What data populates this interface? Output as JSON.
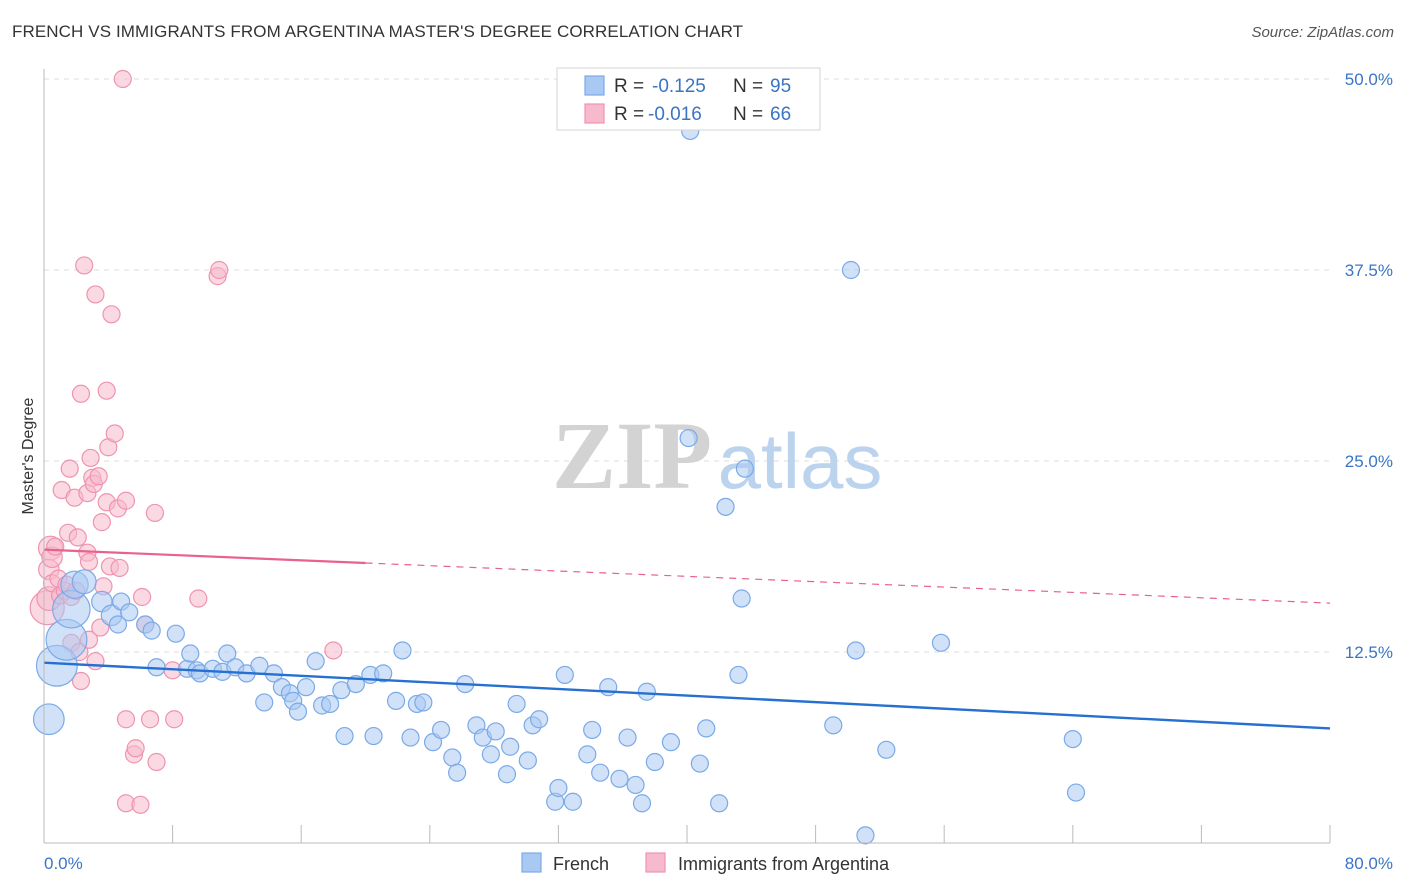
{
  "header": {
    "title": "FRENCH VS IMMIGRANTS FROM ARGENTINA MASTER'S DEGREE CORRELATION CHART",
    "source": "Source: ZipAtlas.com"
  },
  "watermark": {
    "zip": "ZIP",
    "atlas": "atlas"
  },
  "colors": {
    "french_fill": "#a9c8f2",
    "french_stroke": "#7aaae8",
    "french_line": "#2570d0",
    "arg_fill": "#f7b9cc",
    "arg_stroke": "#ef93b0",
    "arg_line": "#e8628e",
    "axis_text": "#3a75c4",
    "grid": "#dddddd"
  },
  "legend": {
    "rows": [
      {
        "r_label": "R =",
        "r_value": "-0.125",
        "n_label": "N =",
        "n_value": "95"
      },
      {
        "r_label": "R =",
        "r_value": "-0.016",
        "n_label": "N =",
        "n_value": "66"
      }
    ]
  },
  "chart_data": {
    "type": "scatter",
    "title": "FRENCH VS IMMIGRANTS FROM ARGENTINA MASTER'S DEGREE CORRELATION CHART",
    "xlabel": "",
    "ylabel": "Master's Degree",
    "xlim": [
      0,
      80
    ],
    "ylim": [
      0,
      50
    ],
    "x_tick_labels": [
      "0.0%",
      "80.0%"
    ],
    "y_ticks": [
      12.5,
      25,
      37.5,
      50
    ],
    "y_tick_labels": [
      "12.5%",
      "25.0%",
      "37.5%",
      "50.0%"
    ],
    "grid": true,
    "legend_position": "bottom-center",
    "series": [
      {
        "name": "French",
        "trend": {
          "x": [
            0,
            80
          ],
          "y": [
            11.8,
            7.5
          ],
          "dashed_from_x": null
        },
        "points": [
          [
            0.3,
            8.1,
            1.8
          ],
          [
            0.8,
            11.6,
            2.4
          ],
          [
            1.4,
            13.3,
            2.4
          ],
          [
            1.7,
            15.3,
            2.2
          ],
          [
            1.9,
            16.9,
            1.6
          ],
          [
            2.5,
            17.1,
            1.4
          ],
          [
            3.6,
            15.8,
            1.2
          ],
          [
            4.2,
            14.9,
            1.2
          ],
          [
            4.6,
            14.3,
            1
          ],
          [
            4.8,
            15.8,
            1
          ],
          [
            5.3,
            15.1,
            1
          ],
          [
            6.3,
            14.3,
            1
          ],
          [
            6.7,
            13.9,
            1
          ],
          [
            7.0,
            11.5,
            1
          ],
          [
            8.2,
            13.7,
            1
          ],
          [
            8.9,
            11.4,
            1
          ],
          [
            9.1,
            12.4,
            1
          ],
          [
            9.5,
            11.3,
            1
          ],
          [
            9.7,
            11.1,
            1
          ],
          [
            10.5,
            11.4,
            1
          ],
          [
            11.1,
            11.2,
            1
          ],
          [
            11.4,
            12.4,
            1
          ],
          [
            11.9,
            11.5,
            1
          ],
          [
            12.6,
            11.1,
            1
          ],
          [
            13.4,
            11.6,
            1
          ],
          [
            13.7,
            9.2,
            1
          ],
          [
            14.3,
            11.1,
            1
          ],
          [
            14.8,
            10.2,
            1
          ],
          [
            15.3,
            9.8,
            1
          ],
          [
            15.5,
            9.3,
            1
          ],
          [
            15.8,
            8.6,
            1
          ],
          [
            16.3,
            10.2,
            1
          ],
          [
            16.9,
            11.9,
            1
          ],
          [
            17.3,
            9.0,
            1
          ],
          [
            17.8,
            9.1,
            1
          ],
          [
            18.5,
            10.0,
            1
          ],
          [
            18.7,
            7.0,
            1
          ],
          [
            19.4,
            10.4,
            1
          ],
          [
            20.3,
            11.0,
            1
          ],
          [
            20.5,
            7.0,
            1
          ],
          [
            21.1,
            11.1,
            1
          ],
          [
            21.9,
            9.3,
            1
          ],
          [
            22.3,
            12.6,
            1
          ],
          [
            22.8,
            6.9,
            1
          ],
          [
            23.2,
            9.1,
            1
          ],
          [
            23.6,
            9.2,
            1
          ],
          [
            24.2,
            6.6,
            1
          ],
          [
            24.7,
            7.4,
            1
          ],
          [
            25.4,
            5.6,
            1
          ],
          [
            25.7,
            4.6,
            1
          ],
          [
            26.2,
            10.4,
            1
          ],
          [
            26.9,
            7.7,
            1
          ],
          [
            27.3,
            6.9,
            1
          ],
          [
            27.8,
            5.8,
            1
          ],
          [
            28.1,
            7.3,
            1
          ],
          [
            28.8,
            4.5,
            1
          ],
          [
            29.0,
            6.3,
            1
          ],
          [
            29.4,
            9.1,
            1
          ],
          [
            30.1,
            5.4,
            1
          ],
          [
            30.4,
            7.7,
            1
          ],
          [
            30.8,
            8.1,
            1
          ],
          [
            31.8,
            2.7,
            1
          ],
          [
            32.0,
            3.6,
            1
          ],
          [
            32.4,
            11.0,
            1
          ],
          [
            32.9,
            2.7,
            1
          ],
          [
            33.8,
            5.8,
            1
          ],
          [
            34.1,
            7.4,
            1
          ],
          [
            34.6,
            4.6,
            1
          ],
          [
            35.1,
            10.2,
            1
          ],
          [
            35.8,
            4.2,
            1
          ],
          [
            36.3,
            6.9,
            1
          ],
          [
            36.8,
            3.8,
            1
          ],
          [
            37.2,
            2.6,
            1
          ],
          [
            37.5,
            9.9,
            1
          ],
          [
            38.0,
            5.3,
            1
          ],
          [
            39.0,
            6.6,
            1
          ],
          [
            40.1,
            26.5,
            1
          ],
          [
            40.2,
            46.6,
            1
          ],
          [
            40.8,
            5.2,
            1
          ],
          [
            41.2,
            7.5,
            1
          ],
          [
            42.0,
            2.6,
            1
          ],
          [
            42.4,
            22.0,
            1
          ],
          [
            43.6,
            24.5,
            1
          ],
          [
            43.4,
            16.0,
            1
          ],
          [
            43.2,
            11.0,
            1
          ],
          [
            49.1,
            7.7,
            1
          ],
          [
            50.2,
            37.5,
            1
          ],
          [
            50.5,
            12.6,
            1
          ],
          [
            51.1,
            0.5,
            1
          ],
          [
            52.4,
            6.1,
            1
          ],
          [
            55.8,
            13.1,
            1
          ],
          [
            64.0,
            6.8,
            1
          ],
          [
            64.2,
            3.3,
            1
          ]
        ]
      },
      {
        "name": "Immigrants from Argentina",
        "trend": {
          "x": [
            0,
            80
          ],
          "y": [
            19.2,
            15.7
          ],
          "dashed_from_x": 20
        },
        "points": [
          [
            0.2,
            15.4,
            2.0
          ],
          [
            0.3,
            16.0,
            1.4
          ],
          [
            0.3,
            17.9,
            1.2
          ],
          [
            0.4,
            19.3,
            1.4
          ],
          [
            0.5,
            18.7,
            1.2
          ],
          [
            0.5,
            17.0,
            1
          ],
          [
            0.7,
            19.4,
            1
          ],
          [
            0.9,
            17.3,
            1
          ],
          [
            1.0,
            16.2,
            1
          ],
          [
            1.1,
            23.1,
            1
          ],
          [
            1.3,
            16.5,
            1
          ],
          [
            1.4,
            16.9,
            1
          ],
          [
            1.5,
            20.3,
            1
          ],
          [
            1.6,
            24.5,
            1
          ],
          [
            1.7,
            16.1,
            1
          ],
          [
            1.7,
            13.1,
            1
          ],
          [
            1.9,
            22.6,
            1
          ],
          [
            2.0,
            16.5,
            1
          ],
          [
            2.1,
            20.0,
            1
          ],
          [
            2.2,
            12.5,
            1
          ],
          [
            2.3,
            10.6,
            1
          ],
          [
            2.3,
            29.4,
            1
          ],
          [
            2.5,
            37.8,
            1
          ],
          [
            2.7,
            19.0,
            1
          ],
          [
            2.7,
            22.9,
            1
          ],
          [
            2.8,
            13.3,
            1
          ],
          [
            2.8,
            18.4,
            1
          ],
          [
            2.9,
            25.2,
            1
          ],
          [
            3.0,
            23.9,
            1
          ],
          [
            3.1,
            23.5,
            1
          ],
          [
            3.2,
            11.9,
            1
          ],
          [
            3.2,
            35.9,
            1
          ],
          [
            3.4,
            24.0,
            1
          ],
          [
            3.5,
            14.1,
            1
          ],
          [
            3.6,
            21.0,
            1
          ],
          [
            3.7,
            16.8,
            1
          ],
          [
            3.9,
            29.6,
            1
          ],
          [
            3.9,
            22.3,
            1
          ],
          [
            4.0,
            25.9,
            1
          ],
          [
            4.1,
            18.1,
            1
          ],
          [
            4.2,
            34.6,
            1
          ],
          [
            4.4,
            26.8,
            1
          ],
          [
            4.6,
            21.9,
            1
          ],
          [
            4.7,
            18.0,
            1
          ],
          [
            4.9,
            50.0,
            1
          ],
          [
            5.1,
            22.4,
            1
          ],
          [
            5.1,
            2.6,
            1
          ],
          [
            5.1,
            8.1,
            1
          ],
          [
            5.6,
            5.8,
            1
          ],
          [
            5.7,
            6.2,
            1
          ],
          [
            6.0,
            2.5,
            1
          ],
          [
            6.1,
            16.1,
            1
          ],
          [
            6.3,
            14.3,
            1
          ],
          [
            6.6,
            8.1,
            1
          ],
          [
            6.9,
            21.6,
            1
          ],
          [
            7.0,
            5.3,
            1
          ],
          [
            8.0,
            11.3,
            1
          ],
          [
            8.1,
            8.1,
            1
          ],
          [
            9.6,
            16.0,
            1
          ],
          [
            10.8,
            37.1,
            1
          ],
          [
            10.9,
            37.5,
            1
          ],
          [
            18.0,
            12.6,
            1
          ]
        ]
      }
    ]
  }
}
